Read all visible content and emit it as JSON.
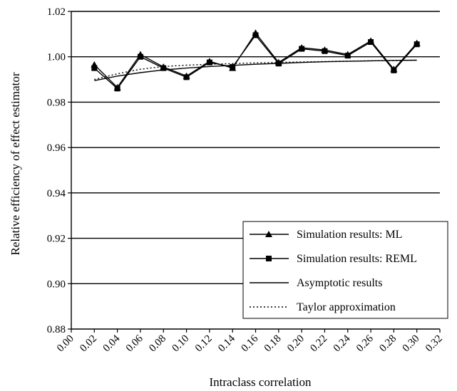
{
  "chart_data": {
    "type": "line",
    "title": "",
    "xlabel": "Intraclass correlation",
    "ylabel": "Relative efficiency of effect estimator",
    "xlim": [
      0.0,
      0.32
    ],
    "ylim": [
      0.88,
      1.02
    ],
    "x_ticks": [
      "0.00",
      "0.02",
      "0.04",
      "0.06",
      "0.08",
      "0.10",
      "0.12",
      "0.14",
      "0.16",
      "0.18",
      "0.20",
      "0.22",
      "0.24",
      "0.26",
      "0.28",
      "0.30",
      "0.32"
    ],
    "y_ticks": [
      "0.88",
      "0.90",
      "0.92",
      "0.94",
      "0.96",
      "0.98",
      "1.00",
      "1.02"
    ],
    "grid": "horizontal",
    "legend_position": "bottom-right",
    "x": [
      0.02,
      0.04,
      0.06,
      0.08,
      0.1,
      0.12,
      0.14,
      0.16,
      0.18,
      0.2,
      0.22,
      0.24,
      0.26,
      0.28,
      0.3
    ],
    "series": [
      {
        "name": "Simulation results: ML",
        "marker": "triangle",
        "style": "solid",
        "values": [
          0.9965,
          0.9865,
          1.001,
          0.9955,
          0.9915,
          0.998,
          0.995,
          1.0105,
          0.9975,
          1.004,
          1.003,
          1.001,
          1.007,
          0.9945,
          1.006
        ]
      },
      {
        "name": "Simulation results: REML",
        "marker": "square",
        "style": "solid",
        "values": [
          0.995,
          0.986,
          1.0,
          0.995,
          0.991,
          0.9975,
          0.9955,
          1.0095,
          0.997,
          1.0035,
          1.0025,
          1.0005,
          1.0065,
          0.994,
          1.0055
        ]
      },
      {
        "name": "Asymptotic results",
        "marker": "none",
        "style": "solid",
        "values": [
          0.9895,
          0.9915,
          0.993,
          0.9942,
          0.995,
          0.9957,
          0.9962,
          0.9967,
          0.9971,
          0.9975,
          0.9978,
          0.998,
          0.9982,
          0.9984,
          0.9985
        ]
      },
      {
        "name": "Taylor approximation",
        "marker": "none",
        "style": "dotted",
        "values": [
          0.99,
          0.9925,
          0.9945,
          0.9957,
          0.9963,
          0.9967,
          0.997,
          0.9973,
          0.9975,
          0.9977,
          0.9979,
          0.9981,
          0.9982,
          0.9983,
          0.9985
        ]
      }
    ]
  }
}
